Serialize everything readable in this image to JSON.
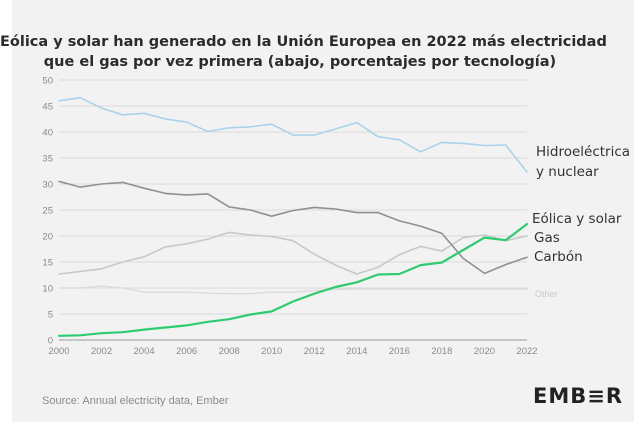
{
  "title_lines": [
    "Eólica y solar han generado en la Unión Europea en 2022 más electricidad",
    "que el gas por vez primera (abajo, porcentajes por tecnología)"
  ],
  "source": "Source: Annual electricity data, Ember",
  "brand": "EMB≡R",
  "colors": {
    "background": "#f2f2f2",
    "grid": "#d9d9d9",
    "hydro_nuclear": "#a9d3ea",
    "coal": "#909090",
    "gas": "#c8c8c8",
    "wind_solar": "#2ecc71",
    "other": "#dcdcdc"
  },
  "chart_data": {
    "type": "line",
    "x": [
      2000,
      2001,
      2002,
      2003,
      2004,
      2005,
      2006,
      2007,
      2008,
      2009,
      2010,
      2011,
      2012,
      2013,
      2014,
      2015,
      2016,
      2017,
      2018,
      2019,
      2020,
      2021,
      2022
    ],
    "xticks": [
      2000,
      2002,
      2004,
      2006,
      2008,
      2010,
      2012,
      2014,
      2016,
      2018,
      2020,
      2022
    ],
    "ylim": [
      0,
      50
    ],
    "yticks": [
      0,
      5,
      10,
      15,
      20,
      25,
      30,
      35,
      40,
      45,
      50
    ],
    "grid": true,
    "series": [
      {
        "name": "Hidroeléctrica\ny nuclear",
        "color_key": "hydro_nuclear",
        "values": [
          46.0,
          46.6,
          44.6,
          43.3,
          43.6,
          42.5,
          41.9,
          40.1,
          40.8,
          41.0,
          41.5,
          39.4,
          39.4,
          40.6,
          41.8,
          39.1,
          38.5,
          36.2,
          38.0,
          37.8,
          37.4,
          37.5,
          32.3
        ]
      },
      {
        "name": "Carbón",
        "color_key": "coal",
        "values": [
          30.5,
          29.4,
          30.0,
          30.3,
          29.2,
          28.2,
          27.9,
          28.1,
          25.6,
          25.0,
          23.8,
          24.9,
          25.5,
          25.2,
          24.5,
          24.5,
          22.9,
          21.9,
          20.5,
          15.7,
          12.8,
          14.5,
          15.9
        ]
      },
      {
        "name": "Gas",
        "color_key": "gas",
        "values": [
          12.7,
          13.2,
          13.7,
          15.0,
          16.0,
          17.9,
          18.5,
          19.4,
          20.7,
          20.2,
          19.9,
          19.1,
          16.5,
          14.4,
          12.7,
          14.0,
          16.4,
          18.0,
          17.1,
          19.7,
          20.2,
          19.1,
          20.0
        ]
      },
      {
        "name": "Eólica y solar",
        "color_key": "wind_solar",
        "values": [
          0.8,
          0.9,
          1.3,
          1.5,
          2.0,
          2.4,
          2.8,
          3.5,
          4.0,
          4.9,
          5.5,
          7.4,
          8.9,
          10.2,
          11.1,
          12.6,
          12.7,
          14.4,
          14.9,
          17.3,
          19.7,
          19.2,
          22.3
        ]
      },
      {
        "name": "Other",
        "color_key": "other",
        "values": [
          10.0,
          10.0,
          10.4,
          10.0,
          9.2,
          9.2,
          9.2,
          9.0,
          8.9,
          8.9,
          9.2,
          9.2,
          9.5,
          9.7,
          9.8,
          9.8,
          9.8,
          9.8,
          9.8,
          9.8,
          9.8,
          9.8,
          9.8
        ]
      }
    ]
  }
}
